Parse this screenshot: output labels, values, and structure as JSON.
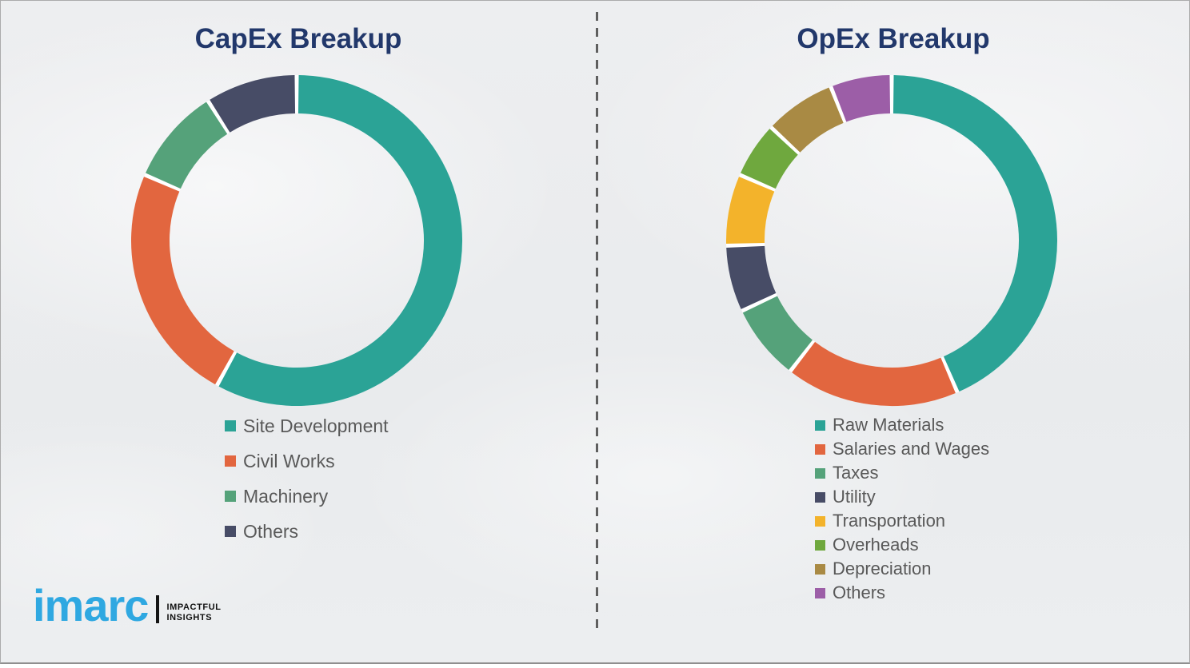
{
  "chart_data": [
    {
      "type": "pie",
      "subtype": "donut",
      "title": "CapEx Breakup",
      "labels": [
        "Site Development",
        "Civil Works",
        "Machinery",
        "Others"
      ],
      "values": [
        58,
        23.5,
        9.5,
        9
      ],
      "colors": [
        "#2ba396",
        "#e2663f",
        "#55a27a",
        "#474c66"
      ],
      "units": "percent (estimated from arc angles, no data labels shown)",
      "start_angle_deg": 0,
      "direction": "clockwise",
      "legend_position": "below-left",
      "data_labels_shown": false
    },
    {
      "type": "pie",
      "subtype": "donut",
      "title": "OpEx Breakup",
      "labels": [
        "Raw Materials",
        "Salaries and Wages",
        "Taxes",
        "Utility",
        "Transportation",
        "Overheads",
        "Depreciation",
        "Others"
      ],
      "values": [
        43.5,
        17,
        7.5,
        6.5,
        7,
        5.5,
        7,
        6
      ],
      "colors": [
        "#2ba396",
        "#e2663f",
        "#55a27a",
        "#474c66",
        "#f3b32b",
        "#6fa83e",
        "#a98a44",
        "#9c5ea7"
      ],
      "units": "percent (estimated from arc angles, no data labels shown)",
      "start_angle_deg": 0,
      "direction": "clockwise",
      "legend_position": "below-left",
      "data_labels_shown": false
    }
  ],
  "titles": {
    "title_color": "#22386b"
  },
  "logo": {
    "brand": "imarc",
    "tagline_line1": "IMPACTFUL",
    "tagline_line2": "INSIGHTS",
    "brand_color": "#2fa8e1"
  }
}
